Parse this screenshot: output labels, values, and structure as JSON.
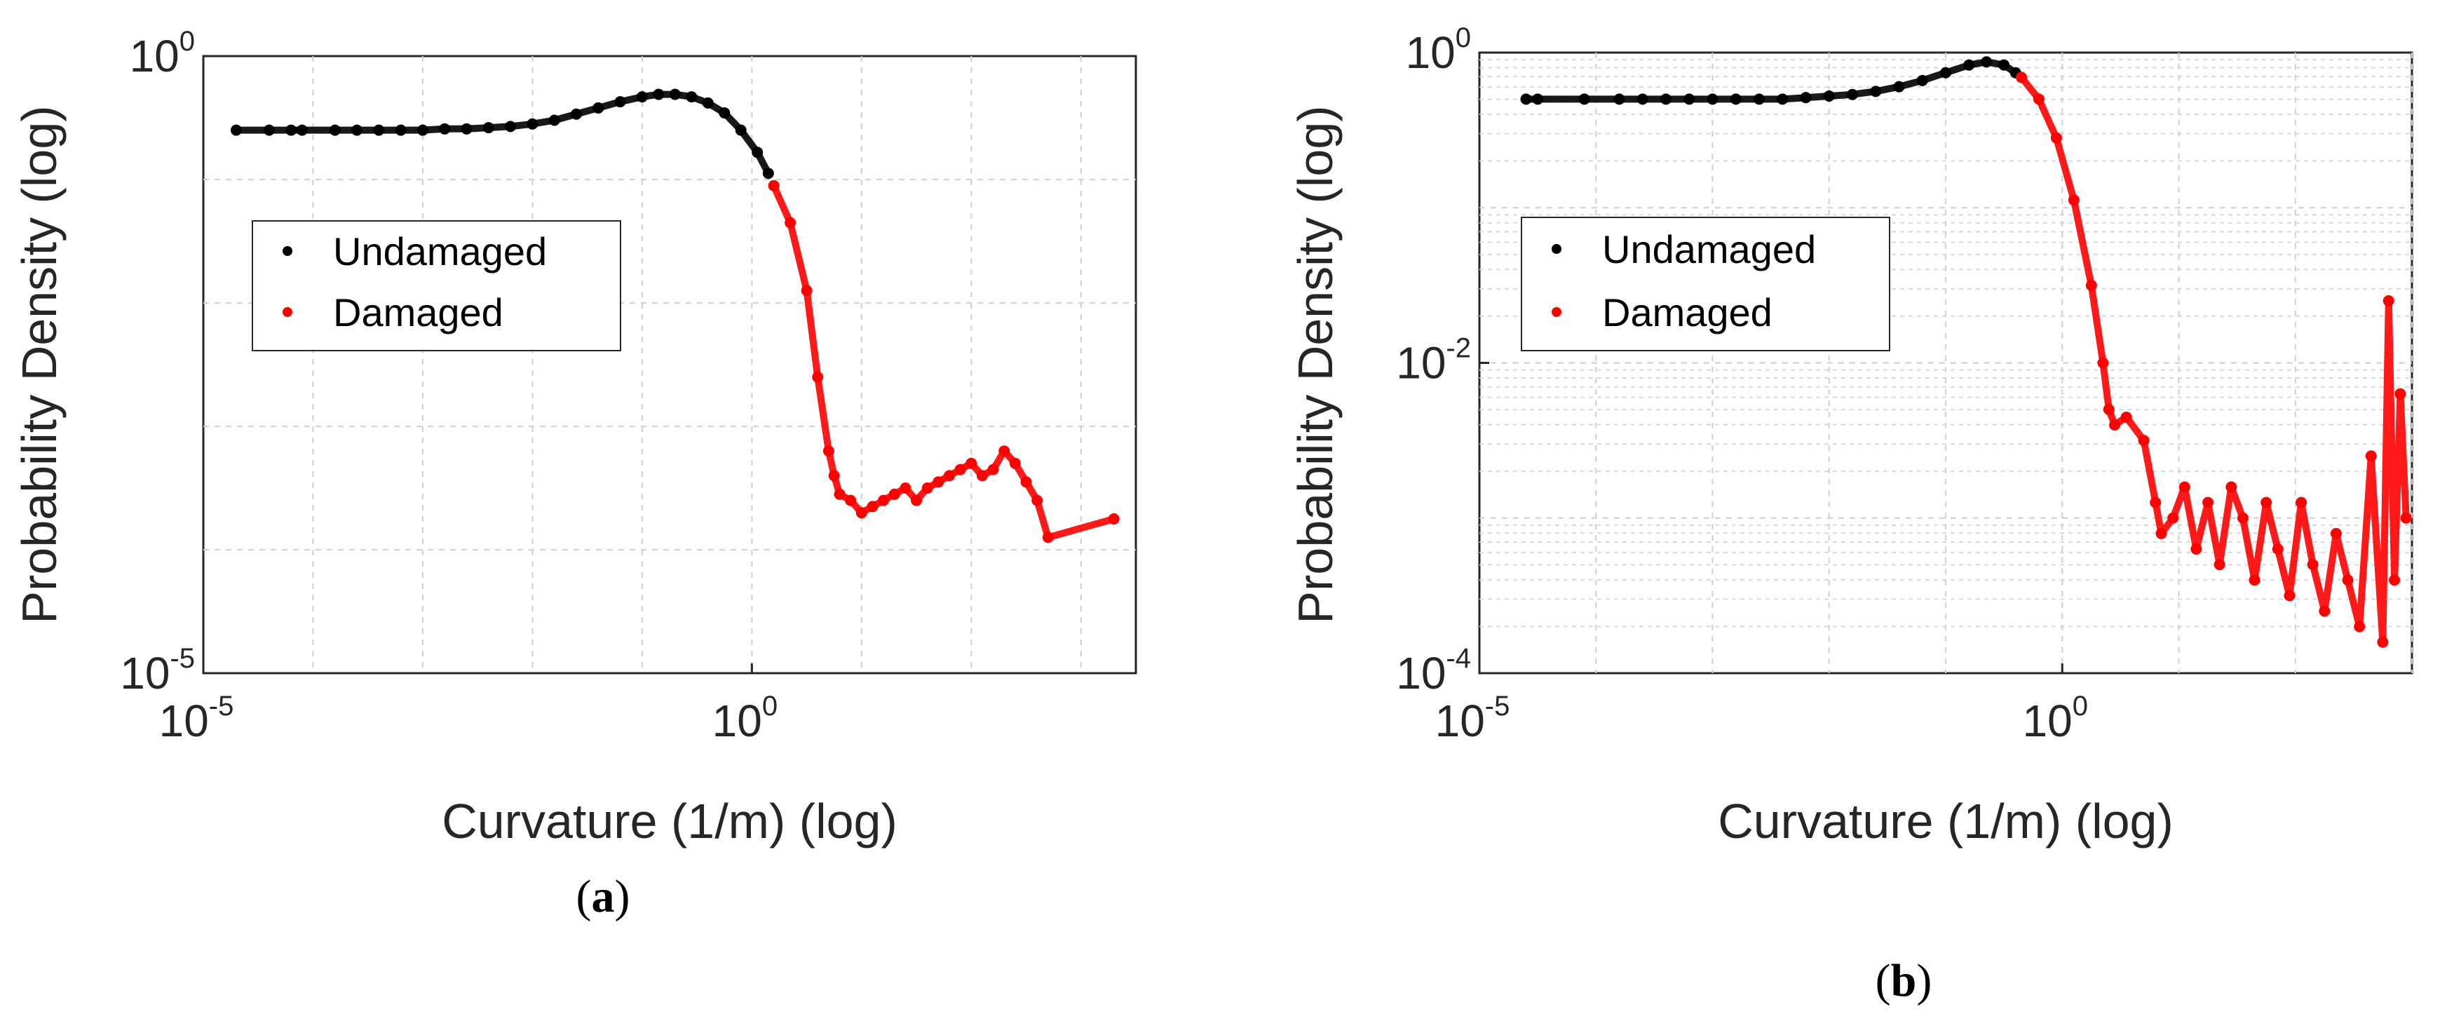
{
  "chart_data": [
    {
      "type": "scatter",
      "panel_label": "a",
      "xlabel": "Curvature (1/m) (log)",
      "ylabel": "Probability Density (log)",
      "xscale": "log",
      "yscale": "log",
      "xlim_log10": [
        -5,
        3.5
      ],
      "ylim_log10": [
        -5,
        0
      ],
      "xticks": [
        {
          "base": "10",
          "exp": "-5",
          "v": -5
        },
        {
          "base": "10",
          "exp": "0",
          "v": 0
        }
      ],
      "yticks": [
        {
          "base": "10",
          "exp": "-5",
          "v": -5
        },
        {
          "base": "10",
          "exp": "0",
          "v": 0
        }
      ],
      "grid": "major",
      "legend_position": "upper-left",
      "series": [
        {
          "name": "Undamaged",
          "color": "#000000",
          "points_log10": [
            [
              -4.7,
              -0.6
            ],
            [
              -4.4,
              -0.6
            ],
            [
              -4.2,
              -0.6
            ],
            [
              -4.1,
              -0.6
            ],
            [
              -3.8,
              -0.6
            ],
            [
              -3.6,
              -0.6
            ],
            [
              -3.4,
              -0.6
            ],
            [
              -3.2,
              -0.6
            ],
            [
              -3.0,
              -0.6
            ],
            [
              -2.8,
              -0.59
            ],
            [
              -2.6,
              -0.59
            ],
            [
              -2.4,
              -0.58
            ],
            [
              -2.2,
              -0.57
            ],
            [
              -2.0,
              -0.55
            ],
            [
              -1.8,
              -0.52
            ],
            [
              -1.6,
              -0.47
            ],
            [
              -1.4,
              -0.42
            ],
            [
              -1.2,
              -0.37
            ],
            [
              -1.0,
              -0.33
            ],
            [
              -0.85,
              -0.31
            ],
            [
              -0.7,
              -0.31
            ],
            [
              -0.55,
              -0.33
            ],
            [
              -0.4,
              -0.38
            ],
            [
              -0.25,
              -0.46
            ],
            [
              -0.1,
              -0.6
            ],
            [
              0.05,
              -0.78
            ],
            [
              0.15,
              -0.95
            ]
          ]
        },
        {
          "name": "Damaged",
          "color": "#ff0000",
          "points_log10": [
            [
              0.2,
              -1.05
            ],
            [
              0.35,
              -1.35
            ],
            [
              0.5,
              -1.9
            ],
            [
              0.6,
              -2.6
            ],
            [
              0.7,
              -3.2
            ],
            [
              0.75,
              -3.4
            ],
            [
              0.8,
              -3.55
            ],
            [
              0.9,
              -3.6
            ],
            [
              1.0,
              -3.7
            ],
            [
              1.1,
              -3.65
            ],
            [
              1.2,
              -3.6
            ],
            [
              1.3,
              -3.55
            ],
            [
              1.4,
              -3.5
            ],
            [
              1.5,
              -3.6
            ],
            [
              1.6,
              -3.5
            ],
            [
              1.7,
              -3.45
            ],
            [
              1.8,
              -3.4
            ],
            [
              1.9,
              -3.35
            ],
            [
              2.0,
              -3.3
            ],
            [
              2.1,
              -3.4
            ],
            [
              2.2,
              -3.35
            ],
            [
              2.3,
              -3.2
            ],
            [
              2.4,
              -3.3
            ],
            [
              2.5,
              -3.45
            ],
            [
              2.6,
              -3.6
            ],
            [
              2.7,
              -3.9
            ],
            [
              3.3,
              -3.75
            ]
          ]
        }
      ]
    },
    {
      "type": "scatter",
      "panel_label": "b",
      "xlabel": "Curvature (1/m) (log)",
      "ylabel": "Probability Density (log)",
      "xscale": "log",
      "yscale": "log",
      "xlim_log10": [
        -5,
        3
      ],
      "ylim_log10": [
        -4,
        0
      ],
      "xticks": [
        {
          "base": "10",
          "exp": "-5",
          "v": -5
        },
        {
          "base": "10",
          "exp": "0",
          "v": 0
        }
      ],
      "yticks": [
        {
          "base": "10",
          "exp": "-4",
          "v": -4
        },
        {
          "base": "10",
          "exp": "-2",
          "v": -2
        },
        {
          "base": "10",
          "exp": "0",
          "v": 0
        }
      ],
      "grid": "major+minor",
      "legend_position": "upper-left",
      "series": [
        {
          "name": "Undamaged",
          "color": "#000000",
          "points_log10": [
            [
              -4.6,
              -0.3
            ],
            [
              -4.5,
              -0.3
            ],
            [
              -4.1,
              -0.3
            ],
            [
              -3.8,
              -0.3
            ],
            [
              -3.6,
              -0.3
            ],
            [
              -3.4,
              -0.3
            ],
            [
              -3.2,
              -0.3
            ],
            [
              -3.0,
              -0.3
            ],
            [
              -2.8,
              -0.3
            ],
            [
              -2.6,
              -0.3
            ],
            [
              -2.4,
              -0.3
            ],
            [
              -2.2,
              -0.29
            ],
            [
              -2.0,
              -0.28
            ],
            [
              -1.8,
              -0.27
            ],
            [
              -1.6,
              -0.25
            ],
            [
              -1.4,
              -0.22
            ],
            [
              -1.2,
              -0.18
            ],
            [
              -1.0,
              -0.13
            ],
            [
              -0.8,
              -0.08
            ],
            [
              -0.65,
              -0.06
            ],
            [
              -0.5,
              -0.08
            ],
            [
              -0.4,
              -0.13
            ]
          ]
        },
        {
          "name": "Damaged",
          "color": "#ff0000",
          "points_log10": [
            [
              -0.35,
              -0.16
            ],
            [
              -0.2,
              -0.3
            ],
            [
              -0.05,
              -0.55
            ],
            [
              0.1,
              -0.95
            ],
            [
              0.25,
              -1.5
            ],
            [
              0.35,
              -2.0
            ],
            [
              0.4,
              -2.3
            ],
            [
              0.45,
              -2.4
            ],
            [
              0.55,
              -2.35
            ],
            [
              0.7,
              -2.5
            ],
            [
              0.8,
              -2.9
            ],
            [
              0.85,
              -3.1
            ],
            [
              0.95,
              -3.0
            ],
            [
              1.05,
              -2.8
            ],
            [
              1.15,
              -3.2
            ],
            [
              1.25,
              -2.9
            ],
            [
              1.35,
              -3.3
            ],
            [
              1.45,
              -2.8
            ],
            [
              1.55,
              -3.0
            ],
            [
              1.65,
              -3.4
            ],
            [
              1.75,
              -2.9
            ],
            [
              1.85,
              -3.2
            ],
            [
              1.95,
              -3.5
            ],
            [
              2.05,
              -2.9
            ],
            [
              2.15,
              -3.3
            ],
            [
              2.25,
              -3.6
            ],
            [
              2.35,
              -3.1
            ],
            [
              2.45,
              -3.4
            ],
            [
              2.55,
              -3.7
            ],
            [
              2.65,
              -2.6
            ],
            [
              2.75,
              -3.8
            ],
            [
              2.8,
              -1.6
            ],
            [
              2.85,
              -3.4
            ],
            [
              2.9,
              -2.2
            ],
            [
              2.95,
              -3.0
            ]
          ]
        }
      ]
    }
  ],
  "captions": {
    "a": "a",
    "b": "b"
  }
}
